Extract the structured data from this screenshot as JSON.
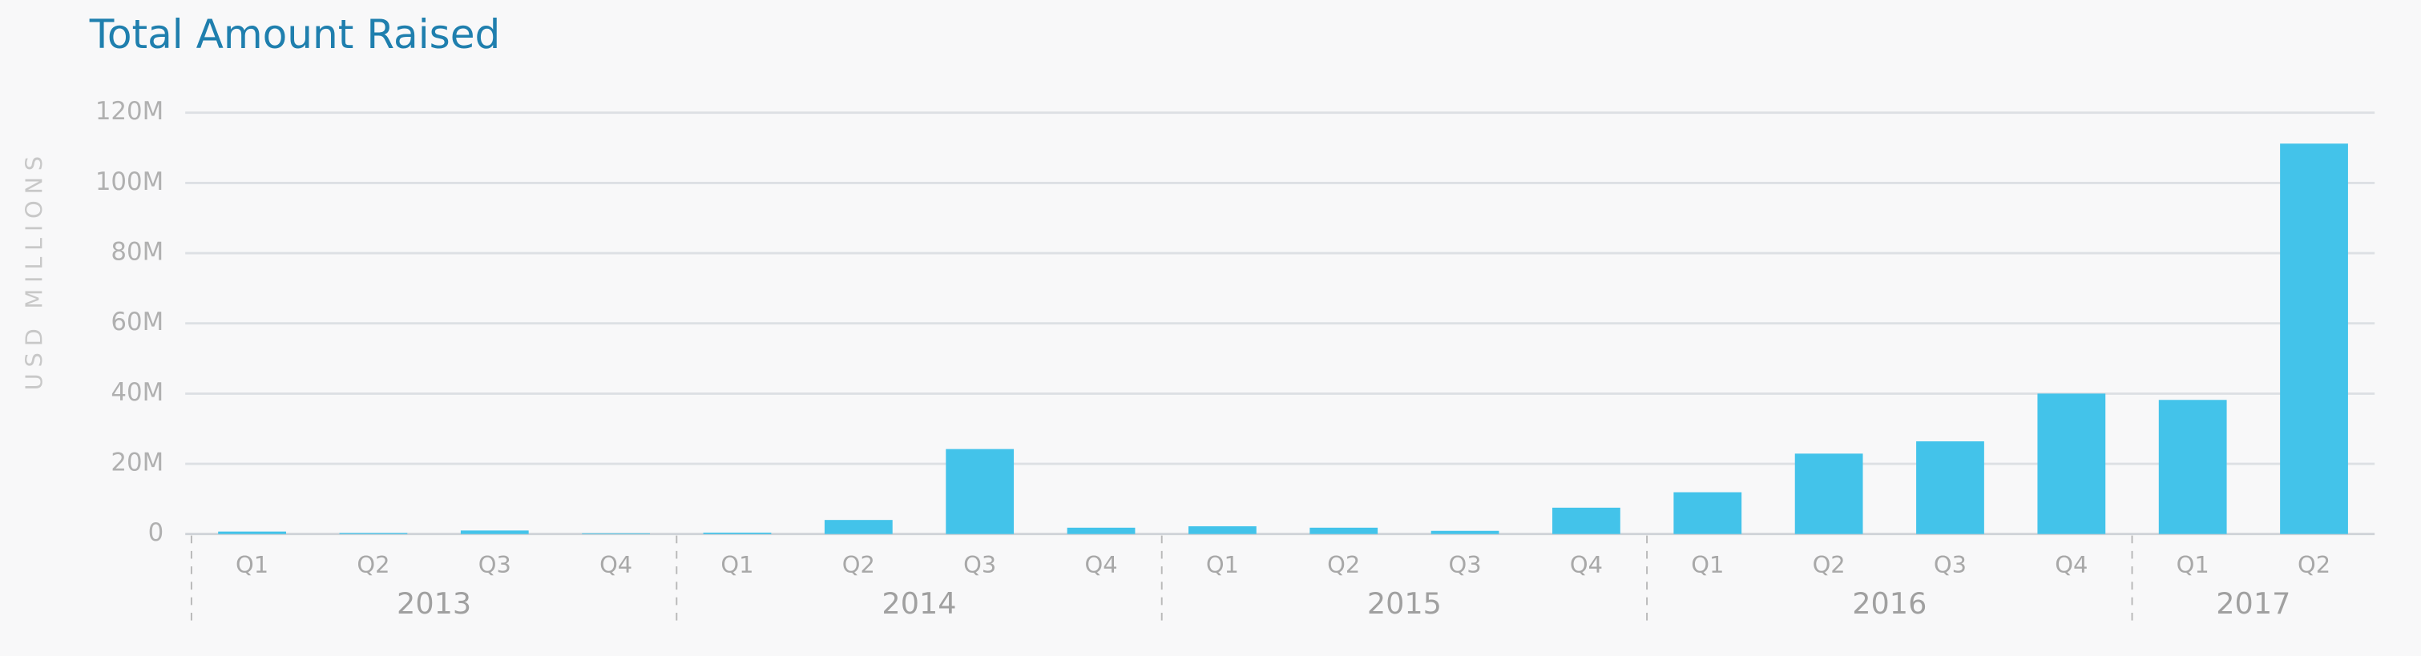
{
  "chart_data": {
    "type": "bar",
    "title": "Total Amount Raised",
    "y_label": "USD MILLIONS",
    "color": "#43c3ea",
    "grid": true,
    "ylim": [
      0,
      120
    ],
    "yticks": [
      0,
      {
        "value": 20,
        "label": "20M"
      },
      {
        "value": 40,
        "label": "40M"
      },
      {
        "value": 60,
        "label": "60M"
      },
      {
        "value": 80,
        "label": "80M"
      },
      {
        "value": 100,
        "label": "100M"
      },
      {
        "value": 120,
        "label": "120M"
      }
    ],
    "groups": [
      {
        "name": "2013",
        "categories": [
          "Q1",
          "Q2",
          "Q3",
          "Q4"
        ],
        "values": [
          0.7,
          0.3,
          1,
          0.2
        ]
      },
      {
        "name": "2014",
        "categories": [
          "Q1",
          "Q2",
          "Q3",
          "Q4"
        ],
        "values": [
          0.4,
          4,
          24.2,
          1.8
        ]
      },
      {
        "name": "2015",
        "categories": [
          "Q1",
          "Q2",
          "Q3",
          "Q4"
        ],
        "values": [
          2.2,
          1.8,
          0.9,
          7.5
        ]
      },
      {
        "name": "2016",
        "categories": [
          "Q1",
          "Q2",
          "Q3",
          "Q4"
        ],
        "values": [
          11.9,
          22.9,
          26.4,
          40
        ]
      },
      {
        "name": "2017",
        "categories": [
          "Q1",
          "Q2"
        ],
        "values": [
          38.2,
          111.2
        ]
      }
    ]
  }
}
